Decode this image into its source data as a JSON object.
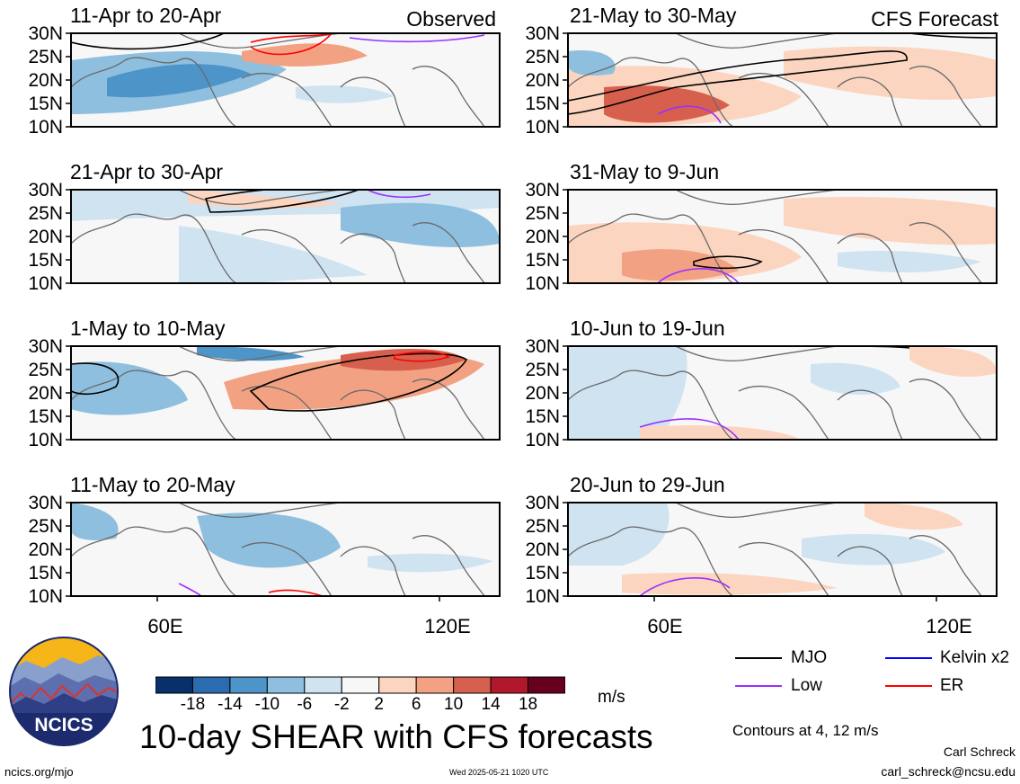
{
  "chart_data": {
    "type": "heatmap",
    "title": "10-day SHEAR with CFS forecasts",
    "units": "m/s",
    "colorbar": {
      "ticks": [
        "-18",
        "-14",
        "-10",
        "-6",
        "-2",
        "2",
        "6",
        "10",
        "14",
        "18"
      ],
      "colors": [
        "#08306b",
        "#2b6cb0",
        "#4d94c8",
        "#8ebfdf",
        "#cfe3f1",
        "#f7f7f7",
        "#fbd5c0",
        "#f2a283",
        "#d6604d",
        "#b2182b",
        "#67001f"
      ]
    },
    "ylabels": [
      "30N",
      "25N",
      "20N",
      "15N",
      "10N"
    ],
    "xlabels": [
      "60E",
      "120E"
    ],
    "observed_label": "Observed",
    "forecast_label": "CFS Forecast",
    "panels_observed": [
      {
        "title": "11-Apr to 20-Apr"
      },
      {
        "title": "21-Apr to 30-Apr"
      },
      {
        "title": "1-May to 10-May"
      },
      {
        "title": "11-May to 20-May"
      }
    ],
    "panels_forecast": [
      {
        "title": "21-May to 30-May"
      },
      {
        "title": "31-May to 9-Jun"
      },
      {
        "title": "10-Jun to 19-Jun"
      },
      {
        "title": "20-Jun to 29-Jun"
      }
    ],
    "legend": [
      {
        "label": "MJO",
        "color": "#000000"
      },
      {
        "label": "Kelvin x2",
        "color": "#0000ff"
      },
      {
        "label": "Low",
        "color": "#9b30ff"
      },
      {
        "label": "ER",
        "color": "#ff0000"
      }
    ],
    "contour_note": "Contours at 4, 12 m/s"
  },
  "footer": {
    "author": "Carl Schreck",
    "email": "carl_schreck@ncsu.edu",
    "site": "ncics.org/mjo",
    "timestamp": "Wed 2025-05-21 1020 UTC",
    "logo_text": "NCICS"
  }
}
